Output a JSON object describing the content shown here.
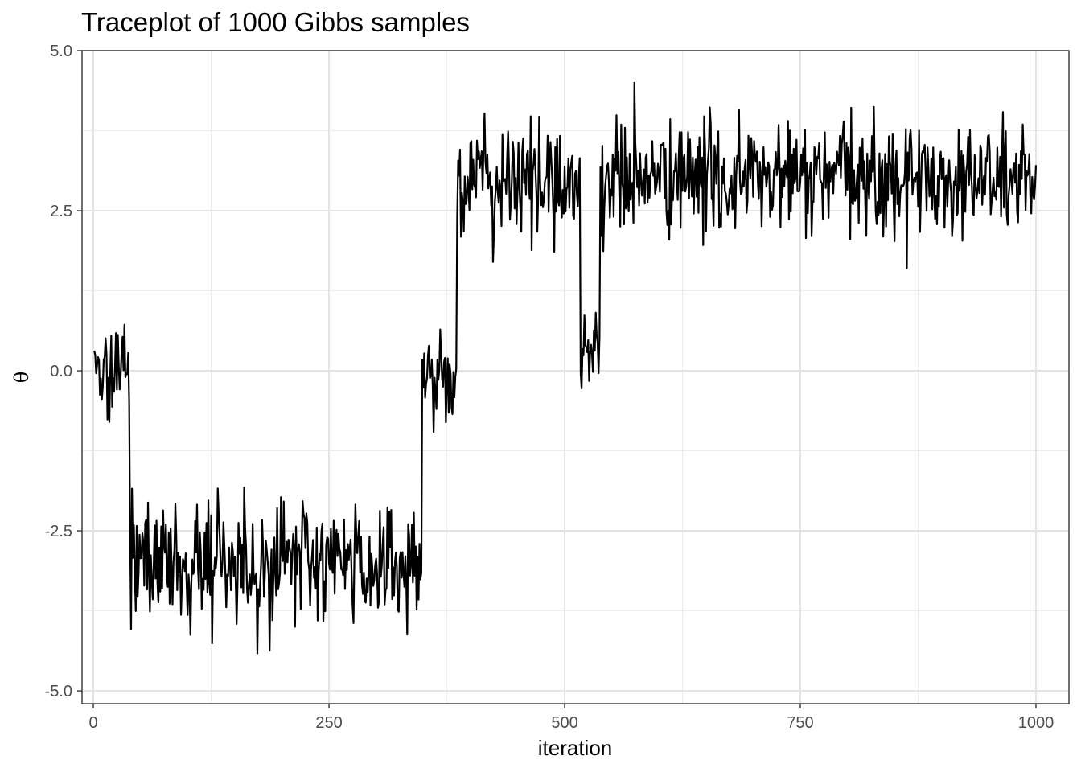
{
  "chart_data": {
    "type": "line",
    "title": "Traceplot of 1000 Gibbs samples",
    "xlabel": "iteration",
    "ylabel": "θ",
    "xlim": [
      -12,
      1035
    ],
    "ylim": [
      -5.2,
      5.0
    ],
    "xticks": [
      0,
      250,
      500,
      750,
      1000
    ],
    "xtick_labels": [
      "0",
      "250",
      "500",
      "750",
      "1000"
    ],
    "yticks": [
      -5.0,
      -2.5,
      0.0,
      2.5,
      5.0
    ],
    "ytick_labels": [
      "-5.0",
      "-2.5",
      "0.0",
      "2.5",
      "5.0"
    ],
    "grid": true,
    "line_color": "#000000",
    "series": [
      {
        "n": 1000,
        "segments": [
          {
            "from": 1,
            "to": 38,
            "center": 0.1,
            "spread": 0.45,
            "min": -0.8,
            "max": 1.05
          },
          {
            "from": 39,
            "to": 348,
            "center": -3.0,
            "spread": 0.5,
            "min": -4.75,
            "max": -1.55
          },
          {
            "from": 349,
            "to": 385,
            "center": -0.1,
            "spread": 0.35,
            "min": -1.0,
            "max": 1.25
          },
          {
            "from": 386,
            "to": 516,
            "center": 2.95,
            "spread": 0.45,
            "min": 1.7,
            "max": 4.55
          },
          {
            "from": 517,
            "to": 537,
            "center": 0.3,
            "spread": 0.35,
            "min": -0.85,
            "max": 1.1
          },
          {
            "from": 538,
            "to": 1000,
            "center": 3.0,
            "spread": 0.45,
            "min": 1.6,
            "max": 4.5
          }
        ]
      }
    ]
  }
}
